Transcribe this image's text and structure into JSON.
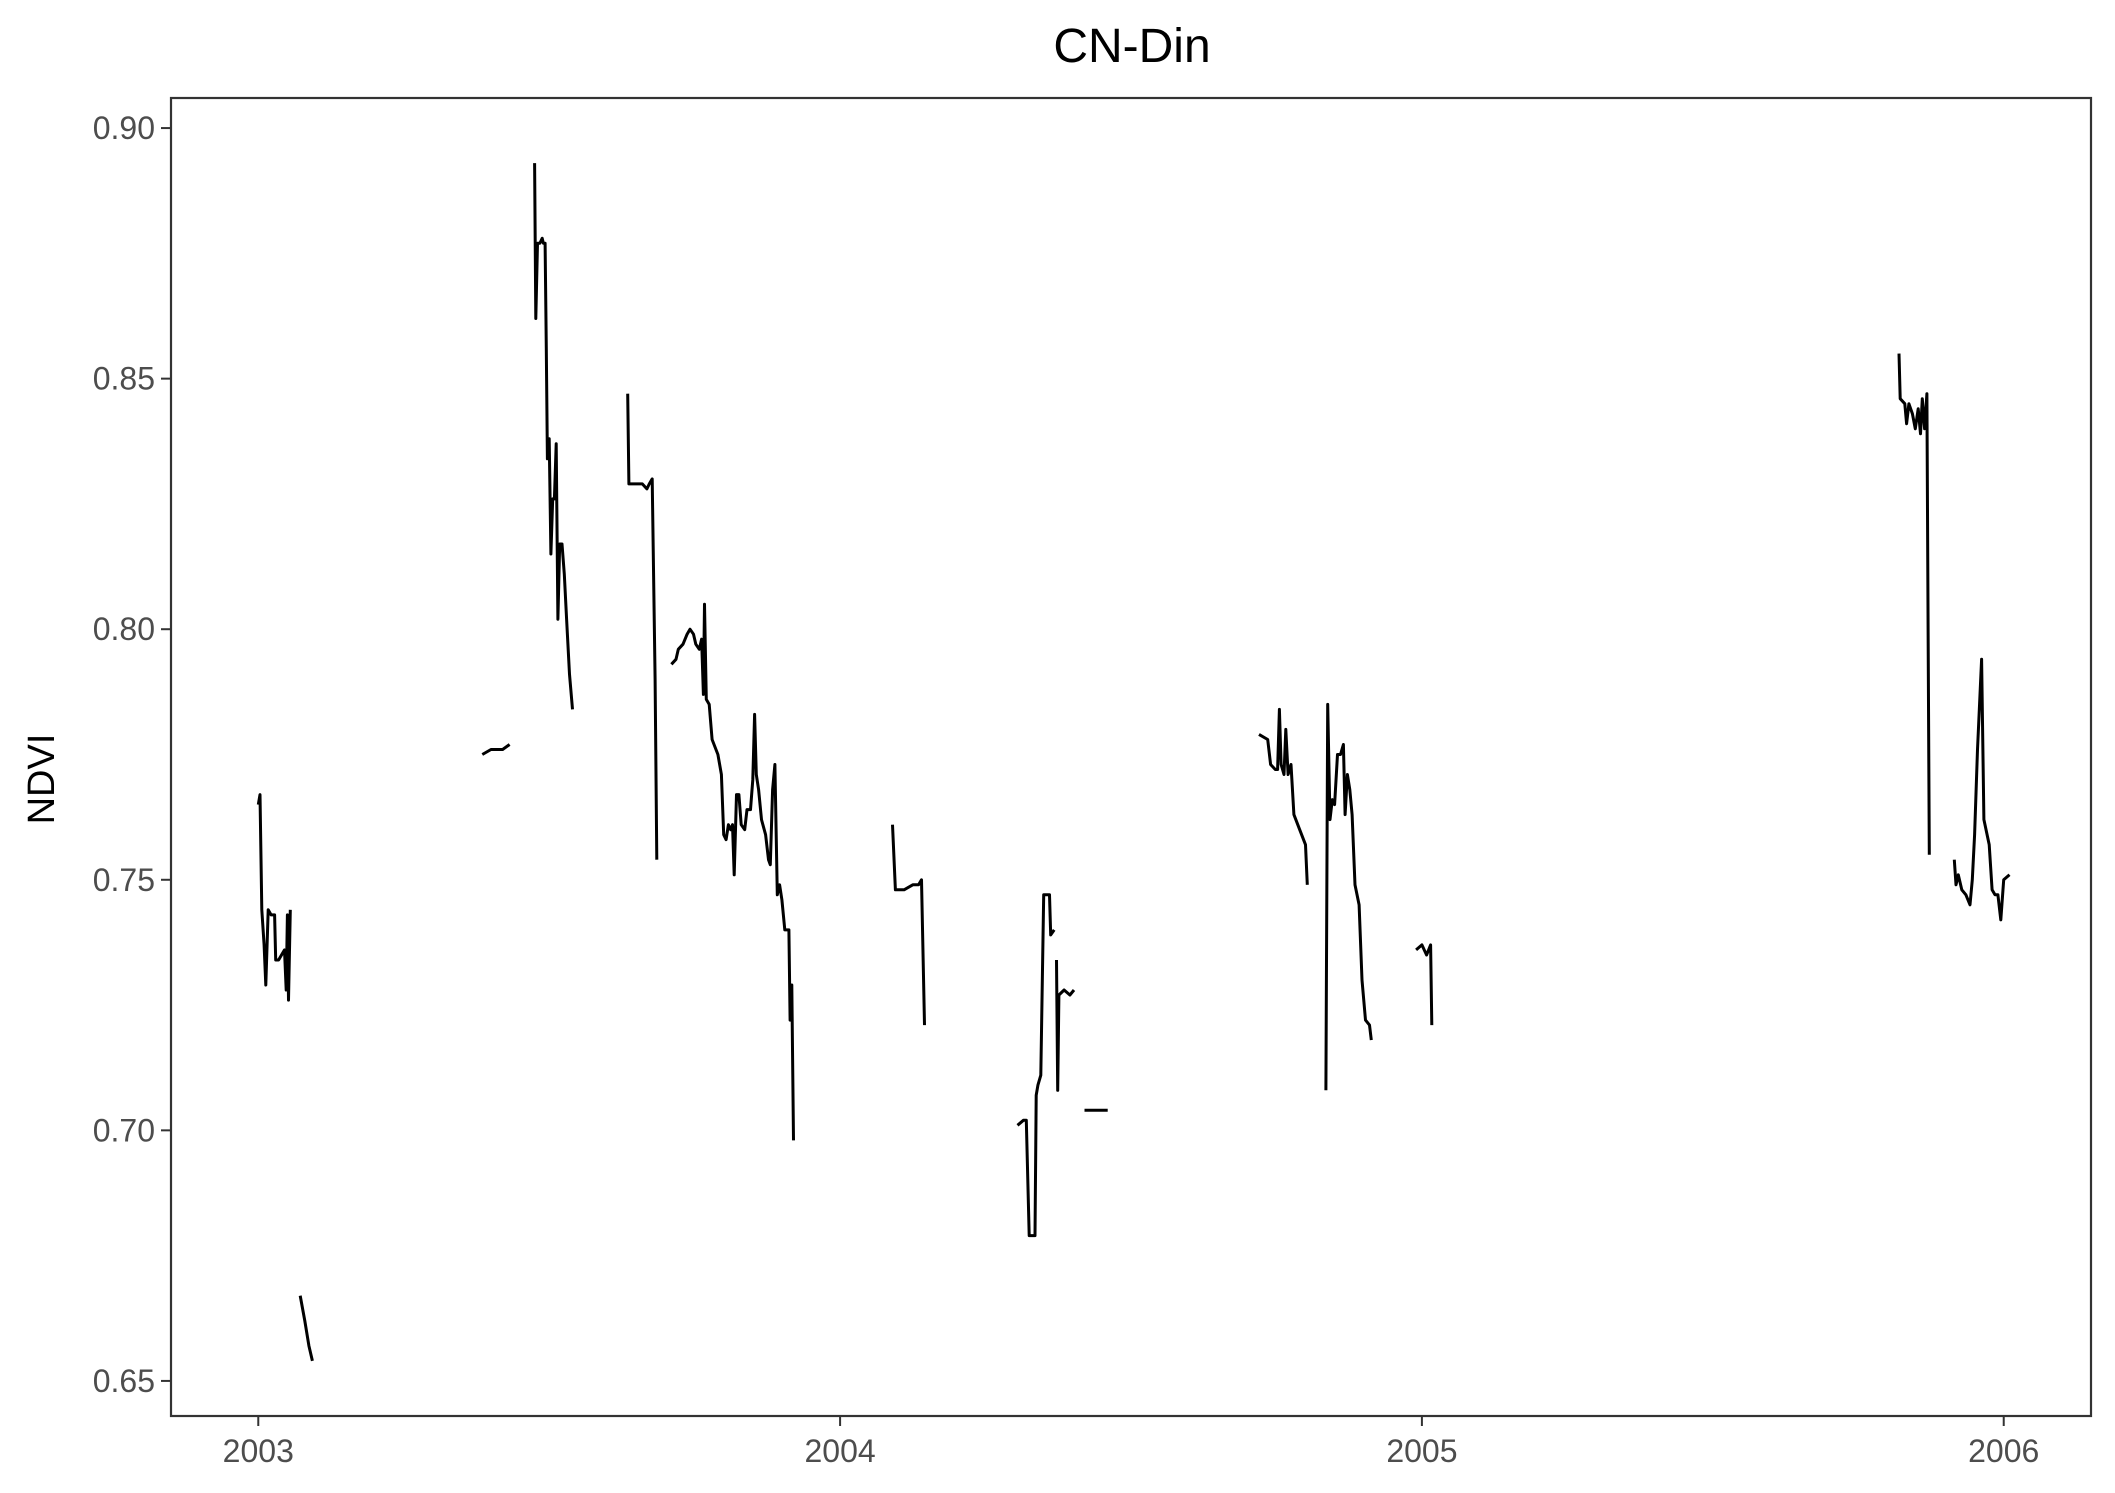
{
  "chart_data": {
    "type": "line",
    "title": "CN-Din",
    "xlabel": "",
    "ylabel": "NDVI",
    "x_unit": "year",
    "xlim": [
      2002.85,
      2006.15
    ],
    "ylim": [
      0.643,
      0.906
    ],
    "x_ticks": [
      2003,
      2004,
      2005,
      2006
    ],
    "x_tick_labels": [
      "2003",
      "2004",
      "2005",
      "2006"
    ],
    "y_ticks": [
      0.65,
      0.7,
      0.75,
      0.8,
      0.85,
      0.9
    ],
    "y_tick_labels": [
      "0.65",
      "0.70",
      "0.75",
      "0.80",
      "0.85",
      "0.90"
    ],
    "grid": false,
    "line_color": "#000000",
    "series": [
      {
        "segments": [
          [
            [
              2003.0,
              0.765
            ],
            [
              2003.003,
              0.767
            ],
            [
              2003.006,
              0.744
            ],
            [
              2003.01,
              0.737
            ],
            [
              2003.013,
              0.729
            ],
            [
              2003.017,
              0.744
            ],
            [
              2003.022,
              0.743
            ],
            [
              2003.028,
              0.743
            ],
            [
              2003.03,
              0.734
            ],
            [
              2003.035,
              0.734
            ],
            [
              2003.04,
              0.735
            ],
            [
              2003.045,
              0.736
            ],
            [
              2003.048,
              0.728
            ],
            [
              2003.05,
              0.743
            ],
            [
              2003.052,
              0.726
            ],
            [
              2003.055,
              0.744
            ]
          ],
          [
            [
              2003.072,
              0.667
            ],
            [
              2003.08,
              0.662
            ],
            [
              2003.087,
              0.657
            ],
            [
              2003.093,
              0.654
            ]
          ],
          [
            [
              2003.385,
              0.775
            ],
            [
              2003.4,
              0.776
            ],
            [
              2003.42,
              0.776
            ],
            [
              2003.432,
              0.777
            ]
          ],
          [
            [
              2003.475,
              0.893
            ],
            [
              2003.477,
              0.862
            ],
            [
              2003.48,
              0.877
            ],
            [
              2003.484,
              0.877
            ],
            [
              2003.488,
              0.878
            ],
            [
              2003.49,
              0.877
            ],
            [
              2003.493,
              0.877
            ],
            [
              2003.495,
              0.856
            ],
            [
              2003.497,
              0.834
            ],
            [
              2003.5,
              0.838
            ],
            [
              2003.503,
              0.815
            ],
            [
              2003.506,
              0.826
            ],
            [
              2003.509,
              0.826
            ],
            [
              2003.512,
              0.837
            ],
            [
              2003.515,
              0.802
            ],
            [
              2003.518,
              0.817
            ],
            [
              2003.522,
              0.817
            ],
            [
              2003.526,
              0.811
            ],
            [
              2003.53,
              0.802
            ],
            [
              2003.535,
              0.791
            ],
            [
              2003.54,
              0.784
            ]
          ],
          [
            [
              2003.635,
              0.847
            ],
            [
              2003.637,
              0.829
            ],
            [
              2003.65,
              0.829
            ],
            [
              2003.66,
              0.829
            ],
            [
              2003.668,
              0.828
            ],
            [
              2003.672,
              0.829
            ],
            [
              2003.677,
              0.83
            ],
            [
              2003.682,
              0.79
            ],
            [
              2003.685,
              0.754
            ]
          ],
          [
            [
              2003.71,
              0.793
            ],
            [
              2003.718,
              0.794
            ],
            [
              2003.722,
              0.796
            ],
            [
              2003.73,
              0.797
            ],
            [
              2003.737,
              0.799
            ],
            [
              2003.742,
              0.8
            ],
            [
              2003.748,
              0.799
            ],
            [
              2003.752,
              0.797
            ],
            [
              2003.758,
              0.796
            ],
            [
              2003.762,
              0.798
            ],
            [
              2003.765,
              0.787
            ],
            [
              2003.767,
              0.805
            ],
            [
              2003.77,
              0.786
            ],
            [
              2003.775,
              0.785
            ],
            [
              2003.78,
              0.778
            ],
            [
              2003.79,
              0.775
            ],
            [
              2003.796,
              0.771
            ],
            [
              2003.8,
              0.759
            ],
            [
              2003.804,
              0.758
            ],
            [
              2003.808,
              0.761
            ],
            [
              2003.812,
              0.76
            ],
            [
              2003.815,
              0.761
            ],
            [
              2003.818,
              0.751
            ],
            [
              2003.822,
              0.767
            ],
            [
              2003.826,
              0.767
            ],
            [
              2003.83,
              0.761
            ],
            [
              2003.836,
              0.76
            ],
            [
              2003.84,
              0.764
            ],
            [
              2003.846,
              0.764
            ],
            [
              2003.85,
              0.77
            ],
            [
              2003.853,
              0.783
            ],
            [
              2003.856,
              0.771
            ],
            [
              2003.86,
              0.768
            ],
            [
              2003.865,
              0.762
            ],
            [
              2003.872,
              0.759
            ],
            [
              2003.877,
              0.754
            ],
            [
              2003.88,
              0.753
            ],
            [
              2003.884,
              0.768
            ],
            [
              2003.888,
              0.773
            ],
            [
              2003.892,
              0.747
            ],
            [
              2003.896,
              0.749
            ],
            [
              2003.9,
              0.746
            ],
            [
              2003.905,
              0.74
            ],
            [
              2003.912,
              0.74
            ],
            [
              2003.914,
              0.722
            ],
            [
              2003.917,
              0.729
            ],
            [
              2003.92,
              0.698
            ]
          ],
          [
            [
              2004.09,
              0.761
            ],
            [
              2004.095,
              0.748
            ],
            [
              2004.11,
              0.748
            ],
            [
              2004.125,
              0.749
            ],
            [
              2004.135,
              0.749
            ],
            [
              2004.14,
              0.75
            ],
            [
              2004.145,
              0.721
            ]
          ],
          [
            [
              2004.305,
              0.701
            ],
            [
              2004.315,
              0.702
            ],
            [
              2004.32,
              0.702
            ],
            [
              2004.325,
              0.679
            ],
            [
              2004.335,
              0.679
            ],
            [
              2004.337,
              0.707
            ],
            [
              2004.34,
              0.709
            ],
            [
              2004.345,
              0.711
            ],
            [
              2004.35,
              0.747
            ],
            [
              2004.36,
              0.747
            ],
            [
              2004.362,
              0.739
            ],
            [
              2004.368,
              0.74
            ]
          ],
          [
            [
              2004.372,
              0.734
            ],
            [
              2004.374,
              0.708
            ],
            [
              2004.376,
              0.727
            ],
            [
              2004.385,
              0.728
            ],
            [
              2004.395,
              0.727
            ],
            [
              2004.402,
              0.728
            ]
          ],
          [
            [
              2004.42,
              0.704
            ],
            [
              2004.44,
              0.704
            ],
            [
              2004.46,
              0.704
            ]
          ],
          [
            [
              2004.72,
              0.779
            ],
            [
              2004.735,
              0.778
            ],
            [
              2004.74,
              0.773
            ],
            [
              2004.748,
              0.772
            ],
            [
              2004.752,
              0.772
            ],
            [
              2004.755,
              0.784
            ],
            [
              2004.758,
              0.773
            ],
            [
              2004.763,
              0.771
            ],
            [
              2004.766,
              0.78
            ],
            [
              2004.77,
              0.771
            ],
            [
              2004.775,
              0.773
            ],
            [
              2004.78,
              0.763
            ],
            [
              2004.79,
              0.76
            ],
            [
              2004.8,
              0.757
            ],
            [
              2004.803,
              0.749
            ]
          ],
          [
            [
              2004.835,
              0.708
            ],
            [
              2004.838,
              0.785
            ],
            [
              2004.842,
              0.762
            ],
            [
              2004.846,
              0.766
            ],
            [
              2004.85,
              0.765
            ],
            [
              2004.855,
              0.775
            ],
            [
              2004.86,
              0.775
            ],
            [
              2004.865,
              0.777
            ],
            [
              2004.868,
              0.763
            ],
            [
              2004.872,
              0.771
            ],
            [
              2004.876,
              0.768
            ],
            [
              2004.88,
              0.763
            ],
            [
              2004.885,
              0.749
            ],
            [
              2004.892,
              0.745
            ],
            [
              2004.897,
              0.73
            ],
            [
              2004.903,
              0.722
            ],
            [
              2004.91,
              0.721
            ],
            [
              2004.913,
              0.718
            ]
          ],
          [
            [
              2004.99,
              0.736
            ],
            [
              2005.0,
              0.737
            ],
            [
              2005.008,
              0.735
            ],
            [
              2005.015,
              0.737
            ],
            [
              2005.017,
              0.721
            ]
          ],
          [
            [
              2005.82,
              0.855
            ],
            [
              2005.822,
              0.846
            ],
            [
              2005.83,
              0.845
            ],
            [
              2005.833,
              0.841
            ],
            [
              2005.837,
              0.845
            ],
            [
              2005.843,
              0.843
            ],
            [
              2005.848,
              0.84
            ],
            [
              2005.853,
              0.844
            ],
            [
              2005.857,
              0.839
            ],
            [
              2005.86,
              0.846
            ],
            [
              2005.864,
              0.84
            ],
            [
              2005.868,
              0.847
            ],
            [
              2005.87,
              0.8
            ],
            [
              2005.872,
              0.755
            ]
          ],
          [
            [
              2005.915,
              0.754
            ],
            [
              2005.918,
              0.749
            ],
            [
              2005.922,
              0.751
            ],
            [
              2005.928,
              0.748
            ],
            [
              2005.935,
              0.747
            ],
            [
              2005.942,
              0.745
            ],
            [
              2005.946,
              0.75
            ],
            [
              2005.95,
              0.759
            ],
            [
              2005.955,
              0.776
            ],
            [
              2005.962,
              0.794
            ],
            [
              2005.966,
              0.762
            ],
            [
              2005.975,
              0.757
            ],
            [
              2005.98,
              0.748
            ],
            [
              2005.985,
              0.747
            ],
            [
              2005.99,
              0.747
            ],
            [
              2005.995,
              0.742
            ],
            [
              2006.0,
              0.75
            ],
            [
              2006.01,
              0.751
            ]
          ]
        ]
      }
    ]
  }
}
